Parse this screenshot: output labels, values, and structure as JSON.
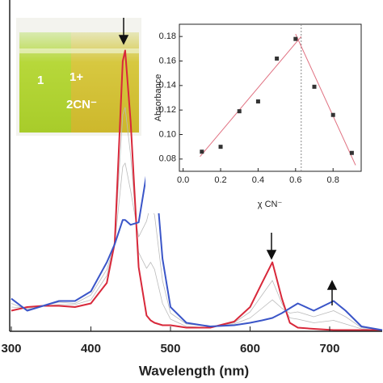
{
  "chart_data": [
    {
      "type": "line",
      "xlabel": "Wavelength (nm)",
      "x": [
        300,
        320,
        340,
        360,
        380,
        400,
        420,
        430,
        440,
        443,
        450,
        460,
        470,
        475,
        480,
        490,
        500,
        520,
        550,
        580,
        600,
        615,
        628,
        640,
        650,
        660,
        680,
        705,
        720,
        740,
        766
      ],
      "xlim": [
        300,
        766
      ],
      "xticks": [
        300,
        400,
        500,
        600,
        700
      ],
      "ylim": [
        0,
        2.55
      ],
      "series": [
        {
          "color": "#bbbbbb",
          "values": [
            0.2,
            0.19,
            0.21,
            0.22,
            0.22,
            0.26,
            0.46,
            0.73,
            1.79,
            1.85,
            1.45,
            0.65,
            0.52,
            0.57,
            0.51,
            0.23,
            0.1,
            0.04,
            0.03,
            0.07,
            0.16,
            0.3,
            0.42,
            0.23,
            0.11,
            0.1,
            0.07,
            0.09,
            0.06,
            0.02,
            0.01
          ]
        },
        {
          "color": "#bbbbbb",
          "values": [
            0.23,
            0.18,
            0.21,
            0.24,
            0.23,
            0.3,
            0.51,
            0.72,
            1.36,
            1.39,
            1.16,
            0.78,
            0.91,
            1.05,
            0.96,
            0.42,
            0.15,
            0.06,
            0.04,
            0.06,
            0.11,
            0.19,
            0.26,
            0.19,
            0.15,
            0.16,
            0.12,
            0.17,
            0.12,
            0.03,
            0.01
          ]
        },
        {
          "color": "#d8283a",
          "values": [
            0.17,
            0.2,
            0.21,
            0.21,
            0.2,
            0.23,
            0.4,
            0.73,
            2.23,
            2.32,
            1.73,
            0.53,
            0.13,
            0.09,
            0.07,
            0.05,
            0.05,
            0.03,
            0.03,
            0.08,
            0.2,
            0.4,
            0.57,
            0.27,
            0.07,
            0.03,
            0.02,
            0.01,
            0.01,
            0.01,
            0.01
          ]
        },
        {
          "color": "#3a55c8",
          "values": [
            0.27,
            0.17,
            0.21,
            0.25,
            0.25,
            0.33,
            0.57,
            0.72,
            0.92,
            0.92,
            0.88,
            0.9,
            1.3,
            1.53,
            1.4,
            0.6,
            0.2,
            0.07,
            0.04,
            0.05,
            0.07,
            0.09,
            0.11,
            0.15,
            0.19,
            0.23,
            0.17,
            0.25,
            0.17,
            0.04,
            0.01
          ]
        }
      ],
      "inset_photo": {
        "labels": [
          "1",
          "1+",
          "2CN⁻"
        ]
      }
    },
    {
      "type": "scatter",
      "xlabel": "χ CN⁻",
      "ylabel": "Absorbance",
      "x": [
        0.1,
        0.2,
        0.3,
        0.4,
        0.5,
        0.6,
        0.7,
        0.8,
        0.9
      ],
      "values": [
        0.086,
        0.09,
        0.119,
        0.127,
        0.162,
        0.178,
        0.139,
        0.116,
        0.085
      ],
      "color": "#333333",
      "xlim": [
        -0.02,
        0.95
      ],
      "ylim": [
        0.07,
        0.19
      ],
      "xticks": [
        {
          "value": 0,
          "label": "0.0"
        },
        {
          "value": 0.2,
          "label": "0.2"
        },
        {
          "value": 0.4,
          "label": "0.4"
        },
        {
          "value": 0.6,
          "label": "0.6"
        },
        {
          "value": 0.8,
          "label": "0.8"
        }
      ],
      "yticks": [
        0.08,
        {
          "value": 0.1,
          "label": "0.10"
        },
        0.12,
        0.14,
        0.16,
        0.18
      ],
      "fit_lines": [
        {
          "x": [
            0.09,
            0.63
          ],
          "y": [
            0.082,
            0.18
          ],
          "color": "#e07080"
        },
        {
          "x": [
            0.6,
            0.92
          ],
          "y": [
            0.182,
            0.075
          ],
          "color": "#e07080"
        }
      ],
      "vline": 0.63
    }
  ]
}
